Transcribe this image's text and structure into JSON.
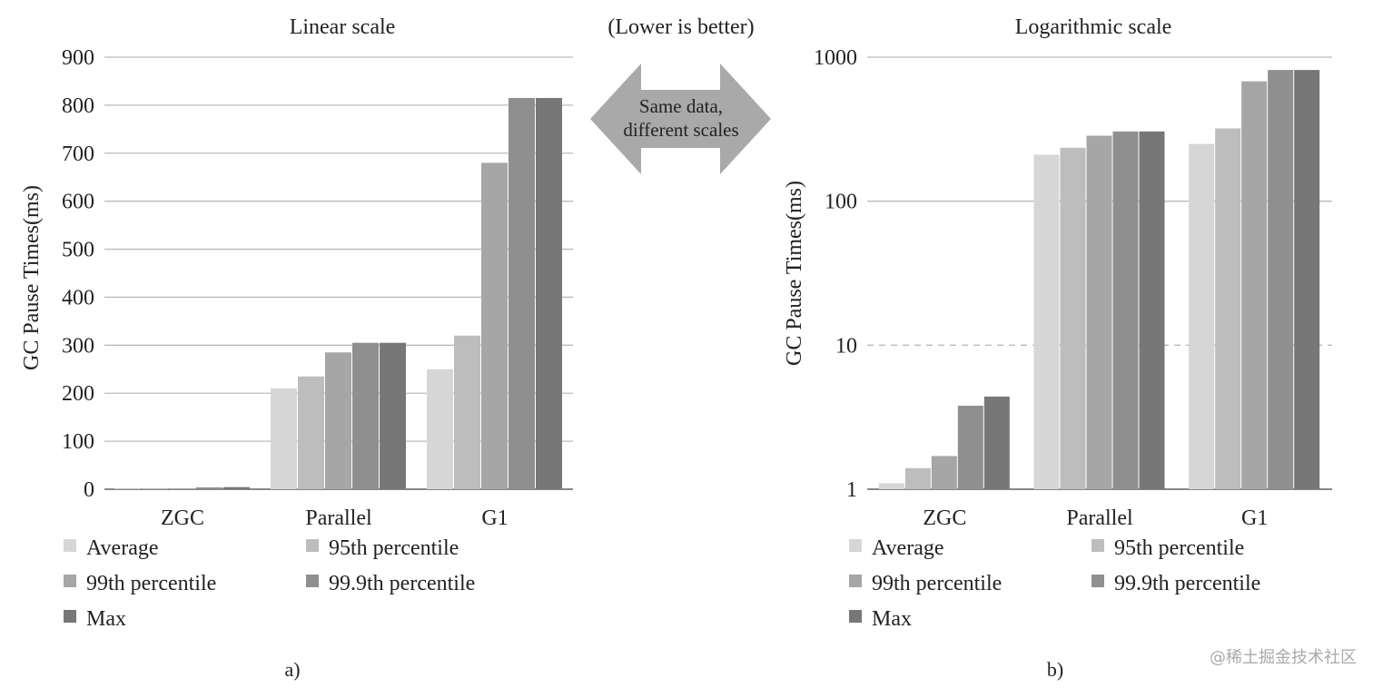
{
  "center_note": {
    "top_text": "(Lower is better)",
    "arrow_line1": "Same data,",
    "arrow_line2": "different scales"
  },
  "watermark": "@稀土掘金技术社区",
  "colors": {
    "series": [
      "#d6d6d6",
      "#bdbdbd",
      "#a6a6a6",
      "#8f8f8f",
      "#777777"
    ],
    "grid": "#bbbbbb",
    "axis": "#666666",
    "arrow": "#a9a9a9"
  },
  "chart_data": [
    {
      "type": "bar",
      "title": "Linear scale",
      "ylabel": "GC Pause Times(ms)",
      "panel_label": "a)",
      "scale": "linear",
      "categories": [
        "ZGC",
        "Parallel",
        "G1"
      ],
      "series": [
        {
          "name": "Average",
          "values": [
            1.1,
            210,
            250
          ]
        },
        {
          "name": "95th percentile",
          "values": [
            1.4,
            235,
            320
          ]
        },
        {
          "name": "99th percentile",
          "values": [
            1.7,
            285,
            680
          ]
        },
        {
          "name": "99.9th percentile",
          "values": [
            3.8,
            305,
            815
          ]
        },
        {
          "name": "Max",
          "values": [
            4.4,
            305,
            815
          ]
        }
      ],
      "ylim": [
        0,
        900
      ],
      "yticks": [
        0,
        100,
        200,
        300,
        400,
        500,
        600,
        700,
        800,
        900
      ],
      "ytick_labels": [
        "0",
        "100",
        "200",
        "300",
        "400",
        "500",
        "600",
        "700",
        "800",
        "900"
      ],
      "grid": true,
      "legend": "bottom"
    },
    {
      "type": "bar",
      "title": "Logarithmic scale",
      "ylabel": "GC Pause Times(ms)",
      "panel_label": "b)",
      "scale": "log",
      "categories": [
        "ZGC",
        "Parallel",
        "G1"
      ],
      "series": [
        {
          "name": "Average",
          "values": [
            1.1,
            210,
            250
          ]
        },
        {
          "name": "95th percentile",
          "values": [
            1.4,
            235,
            320
          ]
        },
        {
          "name": "99th percentile",
          "values": [
            1.7,
            285,
            680
          ]
        },
        {
          "name": "99.9th percentile",
          "values": [
            3.8,
            305,
            815
          ]
        },
        {
          "name": "Max",
          "values": [
            4.4,
            305,
            815
          ]
        }
      ],
      "ylim": [
        1,
        1000
      ],
      "yticks": [
        1,
        10,
        100,
        1000
      ],
      "ytick_labels": [
        "1",
        "10",
        "100",
        "1000"
      ],
      "dashed_reference": 10,
      "grid": true,
      "legend": "bottom"
    }
  ]
}
